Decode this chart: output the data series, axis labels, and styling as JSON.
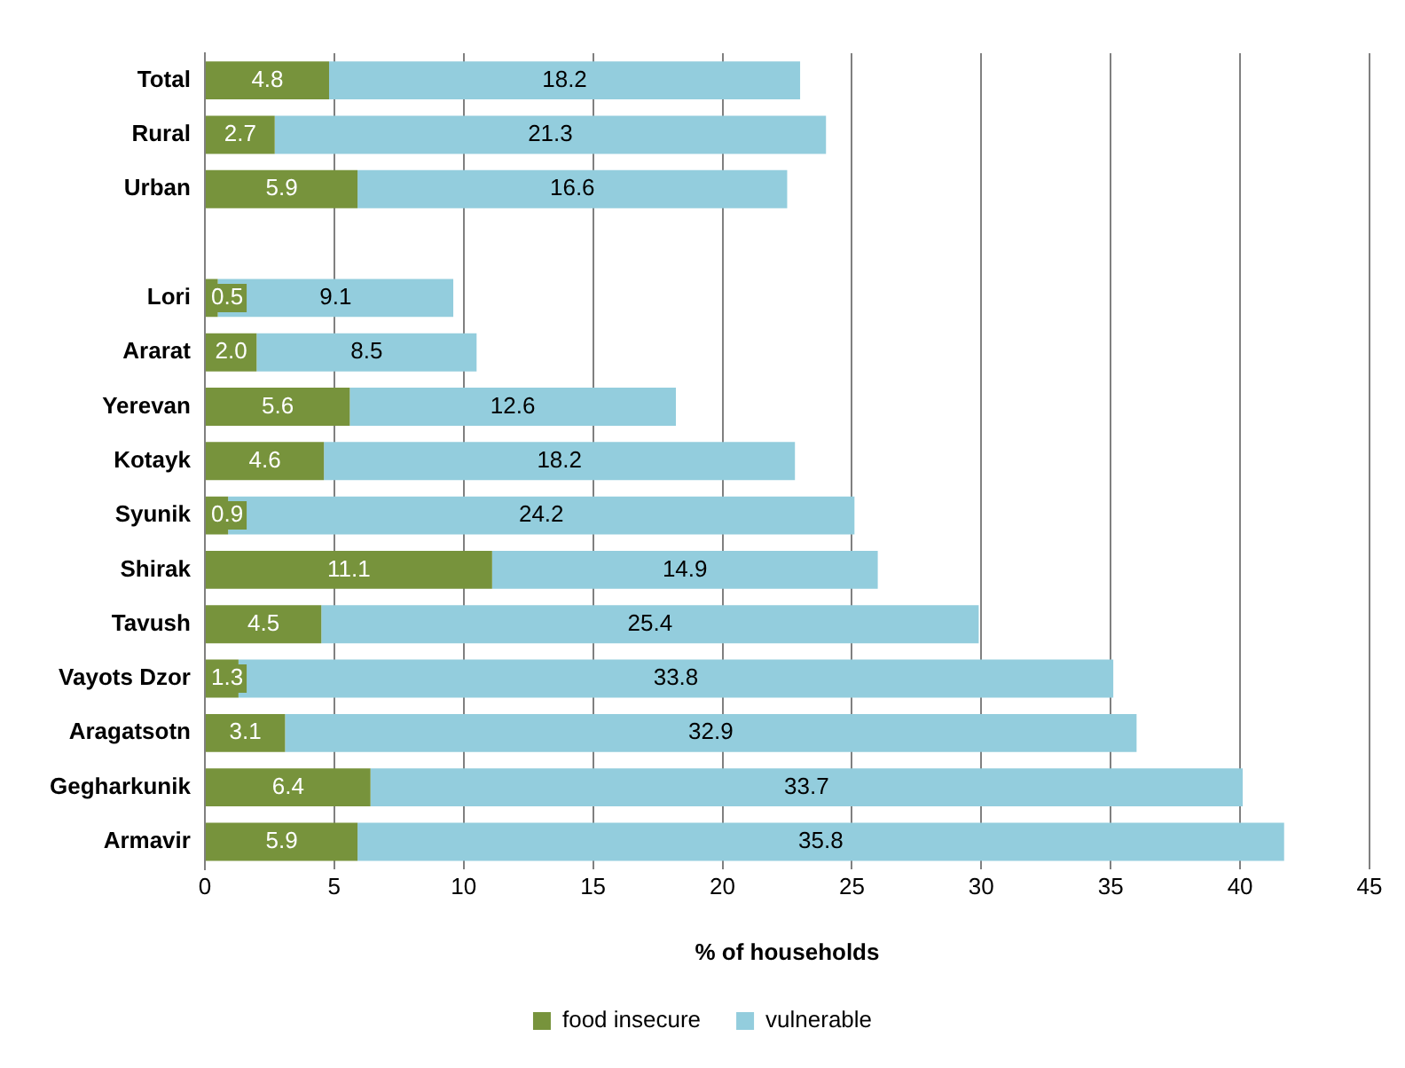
{
  "chart_data": {
    "type": "bar",
    "orientation": "horizontal",
    "stacked": true,
    "xlabel": "% of households",
    "categories": [
      "Total",
      "Rural",
      "Urban",
      null,
      "Lori",
      "Ararat",
      "Yerevan",
      "Kotayk",
      "Syunik",
      "Shirak",
      "Tavush",
      "Vayots Dzor",
      "Aragatsotn",
      "Gegharkunik",
      "Armavir"
    ],
    "series": [
      {
        "name": "food insecure",
        "color": "#77933c",
        "values": [
          4.8,
          2.7,
          5.9,
          null,
          0.5,
          2.0,
          5.6,
          4.6,
          0.9,
          11.1,
          4.5,
          1.3,
          3.1,
          6.4,
          5.9
        ],
        "value_labels": [
          "4.8",
          "2.7",
          "5.9",
          null,
          "0.5",
          "2.0",
          "5.6",
          "4.6",
          "0.9",
          "11.1",
          "4.5",
          "1.3",
          "3.1",
          "6.4",
          "5.9"
        ]
      },
      {
        "name": "vulnerable",
        "color": "#93cddd",
        "values": [
          18.2,
          21.3,
          16.6,
          null,
          9.1,
          8.5,
          12.6,
          18.2,
          24.2,
          14.9,
          25.4,
          33.8,
          32.9,
          33.7,
          35.8
        ],
        "value_labels": [
          "18.2",
          "21.3",
          "16.6",
          null,
          "9.1",
          "8.5",
          "12.6",
          "18.2",
          "24.2",
          "14.9",
          "25.4",
          "33.8",
          "32.9",
          "33.7",
          "35.8"
        ]
      }
    ],
    "xlim": [
      0,
      45
    ],
    "xticks": [
      0,
      5,
      10,
      15,
      20,
      25,
      30,
      35,
      40,
      45
    ],
    "grid": "x",
    "legend": "bottom"
  }
}
